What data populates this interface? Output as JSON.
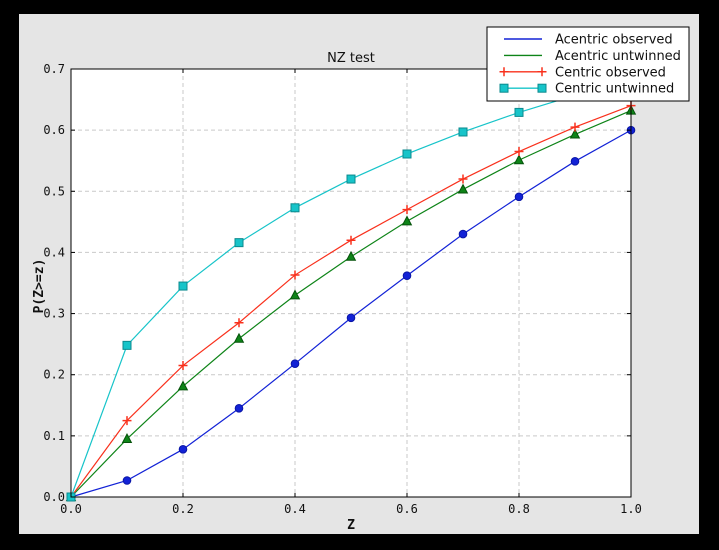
{
  "window": {
    "outer_background": "#000000",
    "figure_background": "#e5e5e5",
    "plot_background": "#ffffff",
    "grid_color": "#c9c9c9",
    "axis_color": "#000000"
  },
  "chart_data": {
    "type": "line",
    "title": "NZ test",
    "xlabel": "Z",
    "ylabel": "P(Z>=z)",
    "xlim": [
      0.0,
      1.0
    ],
    "ylim": [
      0.0,
      0.7
    ],
    "xtick_labels": [
      "0.0",
      "0.2",
      "0.4",
      "0.6",
      "0.8",
      "1.0"
    ],
    "xtick_values": [
      0.0,
      0.2,
      0.4,
      0.6,
      0.8,
      1.0
    ],
    "ytick_labels": [
      "0.0",
      "0.1",
      "0.2",
      "0.3",
      "0.4",
      "0.5",
      "0.6",
      "0.7"
    ],
    "ytick_values": [
      0.0,
      0.1,
      0.2,
      0.3,
      0.4,
      0.5,
      0.6,
      0.7
    ],
    "grid": true,
    "legend": {
      "position": "upper right",
      "entries": [
        "Acentric observed",
        "Acentric untwinned",
        "Centric observed",
        "Centric untwinned"
      ]
    },
    "x": [
      0.0,
      0.1,
      0.2,
      0.3,
      0.4,
      0.5,
      0.6,
      0.7,
      0.8,
      0.9,
      1.0
    ],
    "series": [
      {
        "name": "Acentric observed",
        "color": "#1222d6",
        "edge": "#0a16a6",
        "marker": "circle",
        "legend_marker": false,
        "values": [
          0.0,
          0.027,
          0.078,
          0.145,
          0.218,
          0.293,
          0.362,
          0.43,
          0.491,
          0.549,
          0.6
        ]
      },
      {
        "name": "Acentric untwinned",
        "color": "#0e8418",
        "edge": "#05520a",
        "marker": "triangle",
        "legend_marker": false,
        "values": [
          0.0,
          0.095,
          0.181,
          0.259,
          0.33,
          0.393,
          0.451,
          0.503,
          0.551,
          0.593,
          0.632
        ]
      },
      {
        "name": "Centric observed",
        "color": "#f9301c",
        "edge": "#f9301c",
        "marker": "plus",
        "legend_marker": true,
        "values": [
          0.0,
          0.125,
          0.215,
          0.285,
          0.363,
          0.42,
          0.47,
          0.52,
          0.565,
          0.605,
          0.64
        ]
      },
      {
        "name": "Centric untwinned",
        "color": "#17c4c9",
        "edge": "#0b8a8e",
        "marker": "square",
        "legend_marker": true,
        "values": [
          0.0,
          0.248,
          0.345,
          0.416,
          0.473,
          0.52,
          0.561,
          0.597,
          0.629,
          0.657,
          0.683
        ]
      }
    ]
  }
}
